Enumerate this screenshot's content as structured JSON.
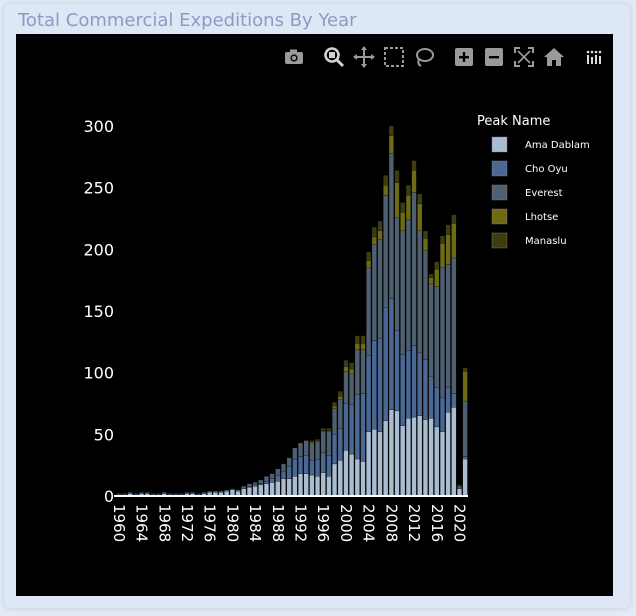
{
  "card": {
    "title": "Total Commercial Expeditions By Year"
  },
  "modebar": {
    "icons": [
      "camera-icon",
      "zoom-icon",
      "pan-icon",
      "box-select-icon",
      "lasso-select-icon",
      "zoom-in-icon",
      "zoom-out-icon",
      "autoscale-icon",
      "reset-axes-icon",
      "plotly-logo-icon"
    ]
  },
  "colors": {
    "background": "#000000",
    "axis": "#ffffff",
    "series": [
      "#a9bcd0",
      "#4b6894",
      "#4e5f70",
      "#6f6a14",
      "#3e3d12"
    ]
  },
  "chart_data": {
    "type": "bar",
    "stacked": true,
    "title": "",
    "xlabel": "",
    "ylabel": "",
    "ylim": [
      0,
      320
    ],
    "y_ticks": [
      0,
      50,
      100,
      150,
      200,
      250,
      300
    ],
    "x_ticks": [
      1960,
      1964,
      1968,
      1972,
      1976,
      1980,
      1984,
      1988,
      1992,
      1996,
      2000,
      2004,
      2008,
      2012,
      2016,
      2020
    ],
    "legend_title": "Peak Name",
    "legend_position": "top-right",
    "grid": false,
    "x": [
      1960,
      1961,
      1962,
      1963,
      1964,
      1965,
      1966,
      1967,
      1968,
      1969,
      1970,
      1971,
      1972,
      1973,
      1974,
      1975,
      1976,
      1977,
      1978,
      1979,
      1980,
      1981,
      1982,
      1983,
      1984,
      1985,
      1986,
      1987,
      1988,
      1989,
      1990,
      1991,
      1992,
      1993,
      1994,
      1995,
      1996,
      1997,
      1998,
      1999,
      2000,
      2001,
      2002,
      2003,
      2004,
      2005,
      2006,
      2007,
      2008,
      2009,
      2010,
      2011,
      2012,
      2013,
      2014,
      2015,
      2016,
      2017,
      2018,
      2019,
      2020,
      2021
    ],
    "series": [
      {
        "name": "Ama Dablam",
        "values": [
          1,
          1,
          2,
          1,
          2,
          2,
          1,
          1,
          2,
          1,
          1,
          1,
          2,
          2,
          1,
          2,
          3,
          3,
          3,
          4,
          5,
          4,
          6,
          7,
          8,
          9,
          10,
          11,
          12,
          14,
          14,
          16,
          18,
          18,
          17,
          16,
          19,
          16,
          26,
          29,
          37,
          34,
          30,
          28,
          52,
          54,
          52,
          61,
          70,
          69,
          57,
          63,
          64,
          65,
          62,
          63,
          56,
          52,
          68,
          72,
          6,
          30
        ]
      },
      {
        "name": "Cho Oyu",
        "values": [
          0,
          0,
          0,
          0,
          0,
          0,
          0,
          0,
          0,
          0,
          0,
          0,
          0,
          0,
          0,
          0,
          0,
          0,
          0,
          0,
          0,
          0,
          0,
          1,
          1,
          1,
          2,
          3,
          5,
          6,
          10,
          14,
          14,
          15,
          12,
          14,
          16,
          17,
          24,
          26,
          38,
          40,
          52,
          55,
          62,
          72,
          76,
          92,
          90,
          65,
          58,
          55,
          58,
          51,
          49,
          34,
          32,
          28,
          20,
          11,
          0,
          2
        ]
      },
      {
        "name": "Everest",
        "values": [
          1,
          1,
          1,
          1,
          1,
          1,
          1,
          1,
          1,
          1,
          1,
          1,
          1,
          1,
          1,
          1,
          1,
          1,
          1,
          1,
          1,
          1,
          2,
          2,
          2,
          3,
          4,
          4,
          5,
          6,
          7,
          9,
          11,
          12,
          14,
          14,
          17,
          19,
          21,
          23,
          26,
          25,
          37,
          36,
          71,
          78,
          80,
          91,
          118,
          92,
          100,
          106,
          124,
          99,
          88,
          75,
          82,
          105,
          100,
          110,
          2,
          45
        ]
      },
      {
        "name": "Lhotse",
        "values": [
          0,
          0,
          0,
          0,
          0,
          0,
          0,
          0,
          0,
          0,
          0,
          0,
          0,
          0,
          0,
          0,
          0,
          0,
          0,
          0,
          0,
          0,
          0,
          0,
          0,
          0,
          0,
          0,
          0,
          0,
          0,
          0,
          0,
          0,
          1,
          1,
          1,
          1,
          2,
          3,
          4,
          4,
          5,
          5,
          6,
          6,
          7,
          8,
          14,
          28,
          15,
          20,
          18,
          22,
          10,
          5,
          14,
          20,
          24,
          28,
          0,
          24
        ]
      },
      {
        "name": "Manaslu",
        "values": [
          0,
          0,
          0,
          0,
          0,
          0,
          0,
          0,
          0,
          0,
          0,
          0,
          0,
          0,
          0,
          0,
          0,
          0,
          0,
          0,
          0,
          0,
          0,
          0,
          0,
          0,
          0,
          0,
          0,
          0,
          0,
          0,
          0,
          0,
          1,
          1,
          2,
          2,
          3,
          4,
          5,
          5,
          6,
          6,
          7,
          8,
          8,
          8,
          8,
          10,
          8,
          8,
          8,
          8,
          6,
          3,
          6,
          6,
          8,
          7,
          1,
          3
        ]
      }
    ]
  }
}
